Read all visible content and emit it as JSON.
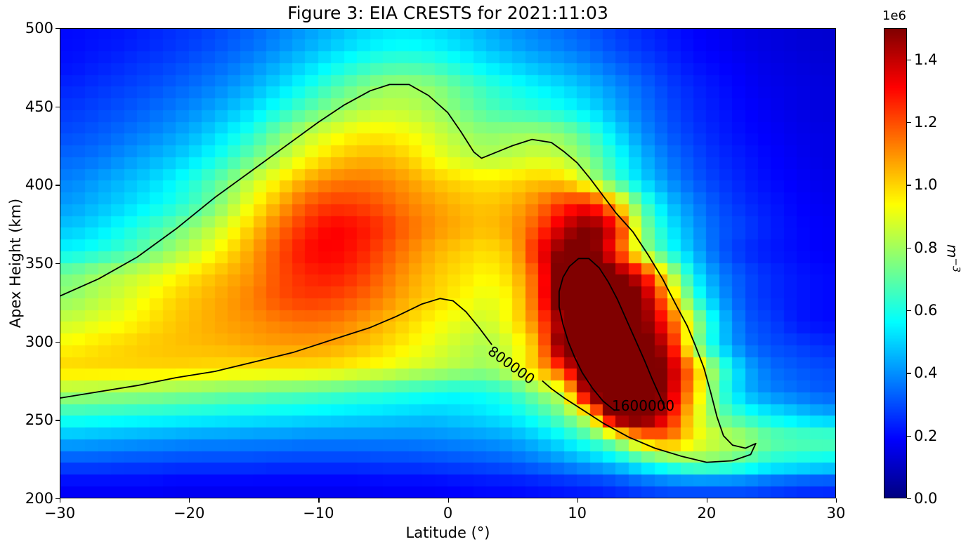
{
  "chart_data": {
    "type": "heatmap",
    "title": "Figure 3: EIA CRESTS for 2021:11:03",
    "xlabel": "Latitude (°)",
    "ylabel": "Apex Height (km)",
    "xlim": [
      -30,
      30
    ],
    "ylim": [
      200,
      500
    ],
    "grid_lines": "off",
    "colormap": "jet",
    "color_range": {
      "vmin": 0,
      "vmax": 1500000
    },
    "x_ticks": {
      "values": [
        -30,
        -20,
        -10,
        0,
        10,
        20,
        30
      ],
      "labels": [
        "−30",
        "−20",
        "−10",
        "0",
        "10",
        "20",
        "30"
      ]
    },
    "y_ticks": {
      "values": [
        200,
        250,
        300,
        350,
        400,
        450,
        500
      ],
      "labels": [
        "200",
        "250",
        "300",
        "350",
        "400",
        "450",
        "500"
      ]
    },
    "colorbar": {
      "position": "right",
      "offset_label": "1e6",
      "unit_var": "m",
      "unit_exp": "−3",
      "ticks": {
        "values": [
          0,
          200000,
          400000,
          600000,
          800000,
          1000000,
          1200000,
          1400000
        ],
        "labels": [
          "0.0",
          "0.2",
          "0.4",
          "0.6",
          "0.8",
          "1.0",
          "1.2",
          "1.4"
        ]
      }
    },
    "grid": {
      "comment": "Electron density estimated on lat/height cell centers; value = entry * values_unit (m^-3). Rows top (h=492.5 km) to bottom (h=207.5 km); columns lat -29 to +29 step 2.",
      "values_unit": 100000,
      "lat_centers_start": -29,
      "lat_step": 2,
      "n_lat": 30,
      "h_centers_start": 492.5,
      "h_step": -15,
      "n_h": 20,
      "values": [
        [
          2,
          2.1,
          2.2,
          2.4,
          2.6,
          2.8,
          3.1,
          3.4,
          3.8,
          4.2,
          4.6,
          5,
          5.3,
          5.4,
          5.2,
          4.9,
          4.5,
          4.1,
          3.8,
          3.5,
          3.2,
          2.8,
          2.5,
          2.2,
          1.9,
          1.7,
          1.5,
          1.4,
          1.3,
          1.2
        ],
        [
          2.1,
          2.3,
          2.5,
          2.7,
          2.9,
          3.2,
          3.5,
          3.9,
          4.4,
          4.9,
          5.5,
          6,
          6.4,
          6.5,
          6.3,
          5.8,
          5.3,
          4.9,
          4.5,
          4.2,
          3.8,
          3.3,
          2.9,
          2.5,
          2.1,
          1.9,
          1.7,
          1.5,
          1.4,
          1.3
        ],
        [
          2.4,
          2.6,
          2.8,
          3,
          3.3,
          3.6,
          4,
          4.5,
          5.1,
          5.8,
          6.6,
          7.3,
          7.9,
          8,
          7.7,
          7,
          6.4,
          5.9,
          5.5,
          5.1,
          4.6,
          4,
          3.4,
          2.8,
          2.4,
          2.1,
          1.8,
          1.6,
          1.5,
          1.4
        ],
        [
          2.7,
          2.9,
          3.1,
          3.4,
          3.7,
          4.1,
          4.6,
          5.2,
          6,
          6.8,
          7.6,
          8.2,
          8.5,
          8.4,
          8,
          7.4,
          6.8,
          6.4,
          6.2,
          5.8,
          5.2,
          4.4,
          3.6,
          3,
          2.5,
          2.2,
          1.9,
          1.7,
          1.5,
          1.4
        ],
        [
          3,
          3.2,
          3.5,
          3.8,
          4.2,
          4.7,
          5.4,
          6.2,
          7.4,
          8.4,
          9,
          9.5,
          9.6,
          9.3,
          8.7,
          8.1,
          7.7,
          7.9,
          8,
          7.6,
          6.6,
          5.2,
          4,
          3.2,
          2.7,
          2.3,
          2,
          1.8,
          1.6,
          1.5
        ],
        [
          3.4,
          3.6,
          4,
          4.4,
          4.8,
          5.4,
          6.2,
          7.2,
          8.2,
          9.2,
          10,
          10.4,
          10.4,
          10,
          9.2,
          8.6,
          8.2,
          8.4,
          8.7,
          8.4,
          7.4,
          6,
          4.6,
          3.6,
          3,
          2.5,
          2.2,
          1.9,
          1.7,
          1.5
        ],
        [
          3.8,
          4.2,
          4.6,
          5,
          5.6,
          6.4,
          7.4,
          8.6,
          9.6,
          10.6,
          11.2,
          11.4,
          11.2,
          10.8,
          10.2,
          9.9,
          9.7,
          9.9,
          10.2,
          10,
          8.3,
          6.5,
          5,
          4,
          3.2,
          2.7,
          2.3,
          2,
          1.8,
          1.6
        ],
        [
          4.2,
          4.6,
          5,
          5.5,
          6,
          6.8,
          8,
          9.4,
          10.6,
          11.8,
          12.3,
          12.2,
          11.8,
          11.2,
          10.8,
          10.4,
          10.2,
          10.5,
          11.3,
          12.5,
          13,
          10.5,
          6.8,
          4.8,
          3.8,
          3,
          2.5,
          2.2,
          1.9,
          1.7
        ],
        [
          4.8,
          5.2,
          5.8,
          6.4,
          7.2,
          8,
          9,
          10.2,
          11.5,
          12.5,
          13.2,
          13,
          12.4,
          11.6,
          11,
          10.6,
          10.3,
          10.8,
          12,
          14,
          15.3,
          13.5,
          7.8,
          5.5,
          4.2,
          3.2,
          2.8,
          2.3,
          2,
          1.8
        ],
        [
          5.6,
          6,
          6.5,
          7.2,
          8,
          8.8,
          9.8,
          10.8,
          12,
          13,
          13.2,
          12.8,
          12,
          11.2,
          10.5,
          10.1,
          9.8,
          10.3,
          13,
          15.3,
          15.5,
          12.5,
          8,
          6,
          4.5,
          3.2,
          2.5,
          2.2,
          2,
          1.8
        ],
        [
          7.4,
          8,
          8.4,
          8.8,
          9.4,
          10,
          10.5,
          11,
          12,
          12.6,
          12.8,
          12.4,
          11.6,
          10.8,
          10.2,
          9.8,
          9.4,
          10,
          12,
          16.5,
          17,
          15.3,
          13.5,
          9,
          5.5,
          3.8,
          3,
          2.5,
          2.2,
          2
        ],
        [
          7.8,
          8.3,
          8.8,
          9.4,
          10,
          10.4,
          10.8,
          11.3,
          12,
          12.3,
          12.2,
          11.8,
          11.2,
          10.5,
          10,
          9.5,
          9,
          9.5,
          12,
          16.8,
          17.8,
          15.8,
          15.2,
          11,
          6.5,
          4.2,
          3,
          2.5,
          2.2,
          2
        ],
        [
          8.6,
          9,
          9.3,
          9.8,
          10.2,
          10.5,
          10.8,
          11,
          11.3,
          11.5,
          11.4,
          11,
          10.5,
          10,
          9.4,
          9,
          8.6,
          9.5,
          11.5,
          15,
          17.5,
          16.5,
          15.3,
          12.5,
          8.5,
          5,
          3.2,
          2.8,
          2.2,
          2
        ],
        [
          9.5,
          9.8,
          10,
          10.2,
          10.3,
          10.4,
          10.5,
          10.7,
          10.8,
          10.8,
          10.7,
          10.4,
          10,
          9.5,
          9,
          8.5,
          8.1,
          8.8,
          10.5,
          16.2,
          17.5,
          17,
          15.6,
          14,
          8,
          5,
          3.5,
          3,
          2.8,
          2.5
        ],
        [
          10,
          10,
          10,
          10,
          10,
          9.9,
          9.8,
          9.8,
          9.8,
          9.8,
          9.7,
          9.4,
          9.2,
          8.8,
          8.5,
          8.2,
          7.9,
          8.8,
          10.5,
          12.5,
          16.8,
          17,
          16.1,
          14.8,
          11,
          7,
          4.5,
          3.5,
          3.2,
          3
        ],
        [
          8.1,
          8,
          7.9,
          7.8,
          7.6,
          7.5,
          7.3,
          7.2,
          7,
          6.9,
          6.7,
          6.5,
          6.3,
          6.1,
          5.9,
          5.7,
          5.9,
          6.4,
          7.6,
          8.7,
          15.7,
          17,
          16.5,
          14.5,
          10.5,
          6.5,
          4.5,
          3.8,
          3.5,
          3.2
        ],
        [
          6.2,
          6.1,
          6,
          5.9,
          5.8,
          5.7,
          5.6,
          5.5,
          5.4,
          5.3,
          5.2,
          5.1,
          5,
          4.9,
          4.8,
          5,
          5.2,
          5.5,
          6.2,
          7.2,
          9,
          16.2,
          16.5,
          13.5,
          9.5,
          7.2,
          6.2,
          5.5,
          5,
          4.5
        ],
        [
          4.5,
          4.4,
          4.3,
          4.2,
          4.1,
          4,
          4,
          3.9,
          3.9,
          3.8,
          3.8,
          3.8,
          3.8,
          3.8,
          3.9,
          4,
          4.1,
          4.3,
          4.8,
          5.5,
          6.5,
          7.8,
          10.5,
          11.5,
          9.5,
          8.6,
          8.2,
          7.2,
          7,
          7
        ],
        [
          3,
          3,
          2.9,
          2.9,
          2.8,
          2.8,
          2.8,
          2.8,
          2.7,
          2.7,
          2.7,
          2.7,
          2.8,
          2.8,
          2.9,
          3,
          3.1,
          3.3,
          3.6,
          4,
          4.5,
          5,
          6,
          6.8,
          7.6,
          7.4,
          6.8,
          6,
          5.8,
          5.5
        ],
        [
          1.8,
          1.8,
          1.8,
          1.8,
          1.7,
          1.7,
          1.7,
          1.7,
          1.7,
          1.7,
          1.7,
          1.7,
          1.8,
          1.8,
          1.8,
          1.9,
          2,
          2,
          2.1,
          2.2,
          2.3,
          2.5,
          2.8,
          3,
          3,
          3,
          3,
          2.8,
          2.6,
          2.5
        ]
      ]
    },
    "contours": [
      {
        "level": 800000,
        "label": "800000",
        "label_lat": 4.9,
        "label_h": 285,
        "label_rot": 36,
        "segments": [
          [
            [
              -30,
              329
            ],
            [
              -27,
              340
            ],
            [
              -24,
              354
            ],
            [
              -21,
              372
            ],
            [
              -18,
              392
            ],
            [
              -15,
              410
            ],
            [
              -12,
              428
            ],
            [
              -10,
              440
            ],
            [
              -8,
              451
            ],
            [
              -6,
              460
            ],
            [
              -4.5,
              464
            ],
            [
              -3,
              464
            ],
            [
              -1.5,
              457
            ],
            [
              0,
              446
            ],
            [
              1,
              434
            ],
            [
              2,
              421
            ],
            [
              2.6,
              417
            ],
            [
              3.5,
              420
            ],
            [
              5,
              425
            ],
            [
              6.5,
              429
            ],
            [
              8,
              427
            ],
            [
              9,
              421
            ],
            [
              10,
              414
            ],
            [
              11,
              404
            ],
            [
              12,
              393
            ],
            [
              13,
              382
            ],
            [
              14.3,
              370
            ],
            [
              15.5,
              355
            ],
            [
              16.6,
              340
            ],
            [
              17.6,
              324
            ],
            [
              18.5,
              310
            ],
            [
              19.1,
              298
            ],
            [
              19.8,
              283
            ],
            [
              20.3,
              268
            ],
            [
              20.8,
              252
            ],
            [
              21.3,
              240
            ],
            [
              22,
              234
            ],
            [
              23,
              232
            ],
            [
              23.8,
              235
            ],
            [
              23.4,
              228
            ],
            [
              22,
              224
            ],
            [
              20,
              223
            ],
            [
              18,
              227
            ],
            [
              16,
              232
            ],
            [
              14,
              239
            ],
            [
              12,
              248
            ],
            [
              10.5,
              256
            ],
            [
              9,
              264
            ],
            [
              8,
              270
            ],
            [
              7.3,
              275
            ]
          ],
          [
            [
              3.4,
              298
            ],
            [
              2.4,
              309
            ],
            [
              1.4,
              319
            ],
            [
              0.4,
              326
            ],
            [
              -0.6,
              327.5
            ],
            [
              -2,
              324
            ],
            [
              -4,
              316
            ],
            [
              -6,
              309
            ],
            [
              -9,
              301
            ],
            [
              -12,
              293
            ],
            [
              -15,
              287
            ],
            [
              -18,
              281
            ],
            [
              -21,
              277
            ],
            [
              -24,
              272
            ],
            [
              -27,
              268
            ],
            [
              -30,
              264
            ]
          ]
        ]
      },
      {
        "level": 1600000,
        "label": "1600000",
        "label_lat": 15.1,
        "label_h": 259,
        "label_rot": 0,
        "segments": [
          [
            [
              12.9,
              256
            ],
            [
              12,
              262
            ],
            [
              11.2,
              270
            ],
            [
              10.4,
              280
            ],
            [
              9.8,
              290
            ],
            [
              9.3,
              300
            ],
            [
              8.9,
              311
            ],
            [
              8.6,
              322
            ],
            [
              8.6,
              332
            ],
            [
              8.9,
              341
            ],
            [
              9.4,
              348
            ],
            [
              10.1,
              353
            ],
            [
              10.9,
              353
            ],
            [
              11.7,
              347
            ],
            [
              12.4,
              338
            ],
            [
              13.1,
              327
            ],
            [
              13.8,
              314
            ],
            [
              14.5,
              301
            ],
            [
              15.2,
              288
            ],
            [
              15.8,
              276
            ],
            [
              16.4,
              265
            ],
            [
              16.8,
              257
            ]
          ]
        ]
      }
    ]
  }
}
